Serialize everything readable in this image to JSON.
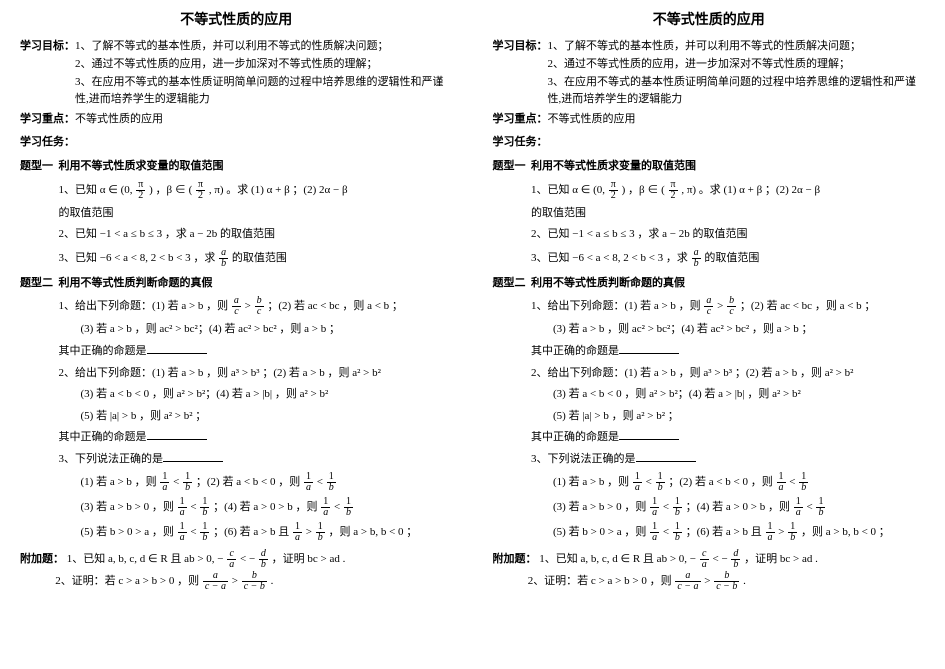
{
  "title": "不等式性质的应用",
  "goal_label": "学习目标：",
  "goals": {
    "g1": "1、了解不等式的基本性质，并可以利用不等式的性质解决问题；",
    "g2": "2、通过不等式性质的应用，进一步加深对不等式性质的理解；",
    "g3": "3、在应用不等式的基本性质证明简单问题的过程中培养思维的逻辑性和严谨性,进而培养学生的逻辑能力"
  },
  "focus_label": "学习重点：",
  "focus_text": "不等式性质的应用",
  "task_label": "学习任务：",
  "type1": {
    "id": "题型一",
    "title": "利用不等式性质求变量的取值范围",
    "p1_pre": "1、已知 α ∈ (0,",
    "p1_mid": ") ，β ∈ (",
    "p1_post": ", π) 。求 (1)  α + β ；(2)  2α − β",
    "p1_tail": "的取值范围",
    "p2": "2、已知 −1 < a ≤ b ≤ 3 ，求 a − 2b 的取值范围",
    "p3_pre": "3、已知 −6 < a < 8, 2 < b < 3 ，求",
    "p3_post": "的取值范围"
  },
  "type2": {
    "id": "题型二",
    "title": "利用不等式性质判断命题的真假",
    "q1_intro": "1、给出下列命题：(1) 若 a > b ，则",
    "q1_mid": "；(2) 若 ac < bc ，则 a < b ；",
    "q1_line2": "(3)  若 a > b ，则 ac² > bc²；(4)  若 ac² > bc² ，则 a > b ；",
    "q1_tail": "其中正确的命题是",
    "q2_intro": "2、给出下列命题：(1) 若 a > b ，则 a³ > b³ ；(2) 若 a > b ，则 a² > b²",
    "q2_line2": "(3)  若 a < b < 0 ，则 a² > b²；(4)  若 a > |b| ，则 a² > b²",
    "q2_line3": "(5)  若 |a| > b ，则 a² > b² ；",
    "q2_tail": "其中正确的命题是",
    "q3_intro": "3、下列说法正确的是",
    "q3_opt1_pre": "(1)  若 a > b ，则",
    "q3_opt1_mid": "；(2) 若 a < b < 0 ，则",
    "q3_opt2_pre": "(3)  若 a > b > 0 ，则",
    "q3_opt2_mid": "；(4)  若 a > 0 > b ，则",
    "q3_opt3_pre": "(5) 若 b > 0 > a ，则",
    "q3_opt3_mid": "；(6) 若 a > b 且",
    "q3_opt3_post": "，则 a > b, b < 0 ；"
  },
  "extra": {
    "label": "附加题：",
    "p1_pre": "1、已知 a, b, c, d ∈ R 且 ab > 0, −",
    "p1_mid": " < −",
    "p1_post": "，证明 bc > ad .",
    "p2_pre": "2、证明：若 c > a > b > 0 ，则",
    "p2_mid": " > ",
    "p2_post": "."
  },
  "frac": {
    "pi": "π",
    "two": "2",
    "a": "a",
    "b": "b",
    "c": "c",
    "d": "d",
    "one": "1",
    "c_minus_a": "c − a",
    "c_minus_b": "c − b"
  }
}
